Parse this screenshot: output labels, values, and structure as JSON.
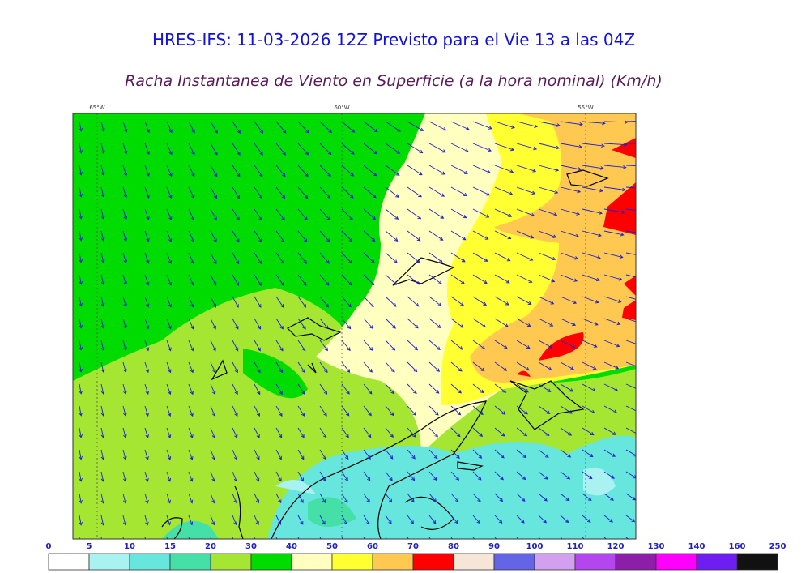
{
  "header": {
    "title": "HRES-IFS: 11-03-2026 12Z Previsto para el Vie 13 a las 04Z",
    "subtitle": "Racha Instantanea de Viento en Superficie (a la hora nominal) (Km/h)"
  },
  "map": {
    "lon_labels": [
      "65°W",
      "60°W",
      "55°W"
    ]
  },
  "colorbar": {
    "ticks": [
      0,
      5,
      10,
      15,
      20,
      30,
      40,
      50,
      60,
      70,
      80,
      90,
      100,
      110,
      120,
      130,
      140,
      160,
      250
    ],
    "colors": [
      "#ffffff",
      "#aaf2f2",
      "#66e6dc",
      "#44e0a8",
      "#a4e632",
      "#00dc00",
      "#ffffc0",
      "#ffff32",
      "#ffc850",
      "#ff0000",
      "#f5e6d8",
      "#6464e6",
      "#d2a0ee",
      "#b446f0",
      "#8c1eaa",
      "#ff00ff",
      "#6e1ef0",
      "#111111"
    ]
  }
}
